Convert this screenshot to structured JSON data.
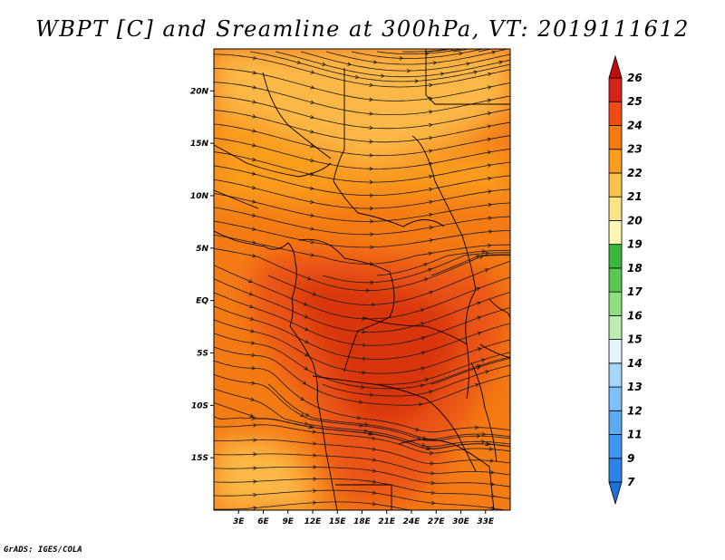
{
  "title": "WBPT [C] and Sreamline at 300hPa, VT: 2019111612",
  "credit": "GrADS: IGES/COLA",
  "map": {
    "lon_range": [
      0,
      36
    ],
    "lat_range": [
      -20,
      24
    ],
    "lat_ticks": [
      {
        "value": 20,
        "label": "20N"
      },
      {
        "value": 15,
        "label": "15N"
      },
      {
        "value": 10,
        "label": "10N"
      },
      {
        "value": 5,
        "label": "5N"
      },
      {
        "value": 0,
        "label": "EQ"
      },
      {
        "value": -5,
        "label": "5S"
      },
      {
        "value": -10,
        "label": "10S"
      },
      {
        "value": -15,
        "label": "15S"
      }
    ],
    "lon_ticks": [
      {
        "value": 3,
        "label": "3E"
      },
      {
        "value": 6,
        "label": "6E"
      },
      {
        "value": 9,
        "label": "9E"
      },
      {
        "value": 12,
        "label": "12E"
      },
      {
        "value": 15,
        "label": "15E"
      },
      {
        "value": 18,
        "label": "18E"
      },
      {
        "value": 21,
        "label": "21E"
      },
      {
        "value": 24,
        "label": "24E"
      },
      {
        "value": 27,
        "label": "27E"
      },
      {
        "value": 30,
        "label": "30E"
      },
      {
        "value": 33,
        "label": "33E"
      }
    ]
  },
  "colorbar": {
    "labels": [
      "7",
      "9",
      "11",
      "12",
      "13",
      "14",
      "15",
      "16",
      "17",
      "18",
      "19",
      "20",
      "21",
      "22",
      "23",
      "24",
      "25",
      "26"
    ],
    "colors": [
      "#1e6fe0",
      "#2c84ea",
      "#3e98f2",
      "#5aacf6",
      "#7ec0f9",
      "#a6d6fb",
      "#e2f4fe",
      "#bdeeb0",
      "#8ee07e",
      "#58c94e",
      "#3ab83a",
      "#fdf6b4",
      "#fde381",
      "#fbc24e",
      "#f99d1e",
      "#f57a10",
      "#ee4c14",
      "#d62416",
      "#c00d0d"
    ]
  },
  "colors": {
    "deep_red": "#d9360f",
    "red_orange": "#ea5418",
    "orange": "#f47b14",
    "light_orange": "#fa9c1e",
    "yellow_orange": "#fcb847",
    "streamline": "#1a1a1a",
    "border": "#000000"
  }
}
